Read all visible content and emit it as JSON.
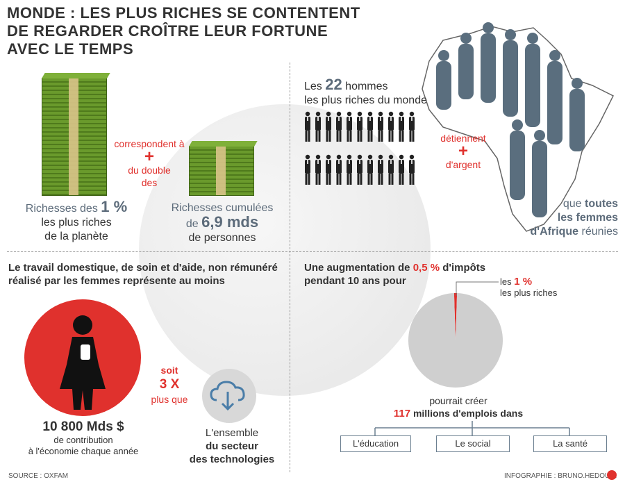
{
  "title": {
    "line1": "MONDE : LES PLUS RICHES SE CONTENTENT",
    "line2": "DE REGARDER CROÎTRE LEUR FORTUNE",
    "line3": "AVEC LE TEMPS"
  },
  "panel1": {
    "left_caption_a": "Richesses des ",
    "left_caption_pct": "1 %",
    "left_caption_b": "les plus riches",
    "left_caption_c": "de la planète",
    "middle_a": "correspondent à",
    "plus": "+",
    "middle_b": "du double",
    "middle_c": "des",
    "right_caption_a": "Richesses cumulées",
    "right_caption_de": "de ",
    "right_caption_num": "6,9 mds",
    "right_caption_c": "de personnes"
  },
  "panel2": {
    "les": "Les ",
    "num": "22",
    "hommes": " hommes",
    "line2": "les plus riches du monde",
    "detiennent": "détiennent",
    "plus": "+",
    "argent": "d'argent",
    "que": "que ",
    "toutes": "toutes",
    "line_b": "les femmes",
    "afrique": "d'Afrique",
    "reunies": " réunies"
  },
  "panel3": {
    "intro_line1": "Le travail domestique, de soin et d'aide, non rémunéré",
    "intro_line2": "réalisé par les femmes représente au moins",
    "amount": "10 800 Mds $",
    "amount_sub1": "de contribution",
    "amount_sub2": "à l'économie chaque année",
    "soit": "soit",
    "times": "3 X",
    "plus_que": "plus que",
    "tech1": "L'ensemble",
    "tech2": "du secteur",
    "tech3": "des technologies"
  },
  "panel4": {
    "intro_a": "Une augmentation de ",
    "intro_pct": "0,5 %",
    "intro_b": " d'impôts",
    "intro_line2": "pendant 10 ans pour",
    "pie_label_a": "les ",
    "pie_label_pct": "1 %",
    "pie_label_b": "les plus riches",
    "pourrait": "pourrait créer",
    "num": "117",
    "millions": " millions d'emplois dans",
    "boxes": [
      "L'éducation",
      "Le social",
      "La santé"
    ]
  },
  "chart_data": {
    "type": "pie",
    "title": "",
    "slices": [
      {
        "label": "les 1 % les plus riches",
        "value": 1,
        "color": "#e0312d"
      },
      {
        "label": "",
        "value": 99,
        "color": "#cfcfcf"
      }
    ]
  },
  "footer": {
    "source": "SOURCE : OXFAM",
    "credit": "INFOGRAPHIE : BRUNO.HEDOUIN"
  },
  "colors": {
    "accent": "#e0312d",
    "slate": "#5c6b7a",
    "money": "#6a9a2c",
    "silhouette": "#5a6e7e"
  },
  "icons": [
    "money-stack-icon",
    "businessman-icon",
    "woman-silhouette-icon",
    "africa-map-icon",
    "pregnant-woman-icon",
    "cloud-download-icon",
    "globe-icon",
    "logo-icon"
  ]
}
